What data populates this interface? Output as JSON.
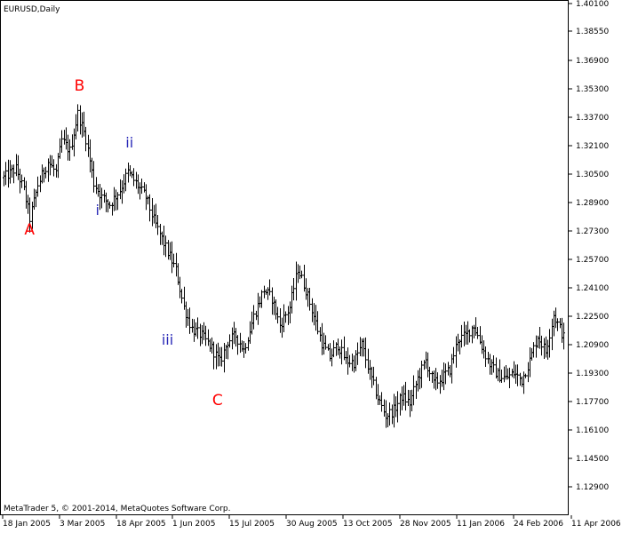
{
  "chart_data": {
    "type": "ohlc",
    "title": "EURUSD,Daily",
    "footer": "MetaTrader 5, © 2001-2014, MetaQuotes Software Corp.",
    "symbol": "EURUSD",
    "timeframe": "Daily",
    "ylim": [
      1.1145,
      1.401
    ],
    "y_ticks": [
      "1.40100",
      "1.38550",
      "1.36900",
      "1.35300",
      "1.33700",
      "1.32100",
      "1.30500",
      "1.28900",
      "1.27300",
      "1.25700",
      "1.24100",
      "1.22500",
      "1.20900",
      "1.19300",
      "1.17700",
      "1.16100",
      "1.14500",
      "1.12900"
    ],
    "x_ticks": [
      "18 Jan 2005",
      "3 Mar 2005",
      "18 Apr 2005",
      "1 Jun 2005",
      "15 Jul 2005",
      "30 Aug 2005",
      "13 Oct 2005",
      "28 Nov 2005",
      "11 Jan 2006",
      "24 Feb 2006",
      "11 Apr 2006"
    ],
    "anchors": [
      {
        "bar": 0,
        "price": 1.303
      },
      {
        "bar": 6,
        "price": 1.308
      },
      {
        "bar": 10,
        "price": 1.296
      },
      {
        "bar": 13,
        "price": 1.28
      },
      {
        "bar": 17,
        "price": 1.299
      },
      {
        "bar": 22,
        "price": 1.312
      },
      {
        "bar": 26,
        "price": 1.306
      },
      {
        "bar": 29,
        "price": 1.324
      },
      {
        "bar": 33,
        "price": 1.318
      },
      {
        "bar": 37,
        "price": 1.339
      },
      {
        "bar": 41,
        "price": 1.325
      },
      {
        "bar": 45,
        "price": 1.3
      },
      {
        "bar": 49,
        "price": 1.292
      },
      {
        "bar": 53,
        "price": 1.288
      },
      {
        "bar": 58,
        "price": 1.296
      },
      {
        "bar": 62,
        "price": 1.306
      },
      {
        "bar": 66,
        "price": 1.3
      },
      {
        "bar": 71,
        "price": 1.292
      },
      {
        "bar": 75,
        "price": 1.279
      },
      {
        "bar": 80,
        "price": 1.266
      },
      {
        "bar": 86,
        "price": 1.251
      },
      {
        "bar": 90,
        "price": 1.23
      },
      {
        "bar": 94,
        "price": 1.218
      },
      {
        "bar": 99,
        "price": 1.214
      },
      {
        "bar": 104,
        "price": 1.207
      },
      {
        "bar": 108,
        "price": 1.199
      },
      {
        "bar": 112,
        "price": 1.211
      },
      {
        "bar": 116,
        "price": 1.214
      },
      {
        "bar": 120,
        "price": 1.206
      },
      {
        "bar": 125,
        "price": 1.225
      },
      {
        "bar": 130,
        "price": 1.24
      },
      {
        "bar": 134,
        "price": 1.235
      },
      {
        "bar": 138,
        "price": 1.22
      },
      {
        "bar": 143,
        "price": 1.23
      },
      {
        "bar": 147,
        "price": 1.252
      },
      {
        "bar": 151,
        "price": 1.24
      },
      {
        "bar": 155,
        "price": 1.225
      },
      {
        "bar": 159,
        "price": 1.21
      },
      {
        "bar": 163,
        "price": 1.202
      },
      {
        "bar": 167,
        "price": 1.209
      },
      {
        "bar": 171,
        "price": 1.2
      },
      {
        "bar": 175,
        "price": 1.199
      },
      {
        "bar": 179,
        "price": 1.209
      },
      {
        "bar": 183,
        "price": 1.193
      },
      {
        "bar": 187,
        "price": 1.179
      },
      {
        "bar": 191,
        "price": 1.169
      },
      {
        "bar": 195,
        "price": 1.172
      },
      {
        "bar": 199,
        "price": 1.18
      },
      {
        "bar": 203,
        "price": 1.176
      },
      {
        "bar": 207,
        "price": 1.19
      },
      {
        "bar": 211,
        "price": 1.2
      },
      {
        "bar": 215,
        "price": 1.187
      },
      {
        "bar": 219,
        "price": 1.19
      },
      {
        "bar": 223,
        "price": 1.195
      },
      {
        "bar": 227,
        "price": 1.212
      },
      {
        "bar": 231,
        "price": 1.214
      },
      {
        "bar": 235,
        "price": 1.22
      },
      {
        "bar": 239,
        "price": 1.208
      },
      {
        "bar": 243,
        "price": 1.198
      },
      {
        "bar": 247,
        "price": 1.192
      },
      {
        "bar": 251,
        "price": 1.19
      },
      {
        "bar": 255,
        "price": 1.193
      },
      {
        "bar": 259,
        "price": 1.189
      },
      {
        "bar": 263,
        "price": 1.2
      },
      {
        "bar": 267,
        "price": 1.214
      },
      {
        "bar": 271,
        "price": 1.205
      },
      {
        "bar": 275,
        "price": 1.226
      },
      {
        "bar": 280,
        "price": 1.213
      }
    ],
    "bar_count": 281,
    "bar_color": "#000000",
    "wave_labels": [
      {
        "text": "A",
        "bar": 13,
        "price": 1.271,
        "color": "#ff0000"
      },
      {
        "text": "B",
        "bar": 38,
        "price": 1.352,
        "color": "#ff0000"
      },
      {
        "text": "C",
        "bar": 107,
        "price": 1.175,
        "color": "#ff0000"
      },
      {
        "text": "i",
        "bar": 47,
        "price": 1.282,
        "color": "#2b2bb8"
      },
      {
        "text": "ii",
        "bar": 63,
        "price": 1.32,
        "color": "#2b2bb8"
      },
      {
        "text": "iii",
        "bar": 82,
        "price": 1.209,
        "color": "#2b2bb8"
      }
    ],
    "grid": false,
    "legend": "none"
  }
}
